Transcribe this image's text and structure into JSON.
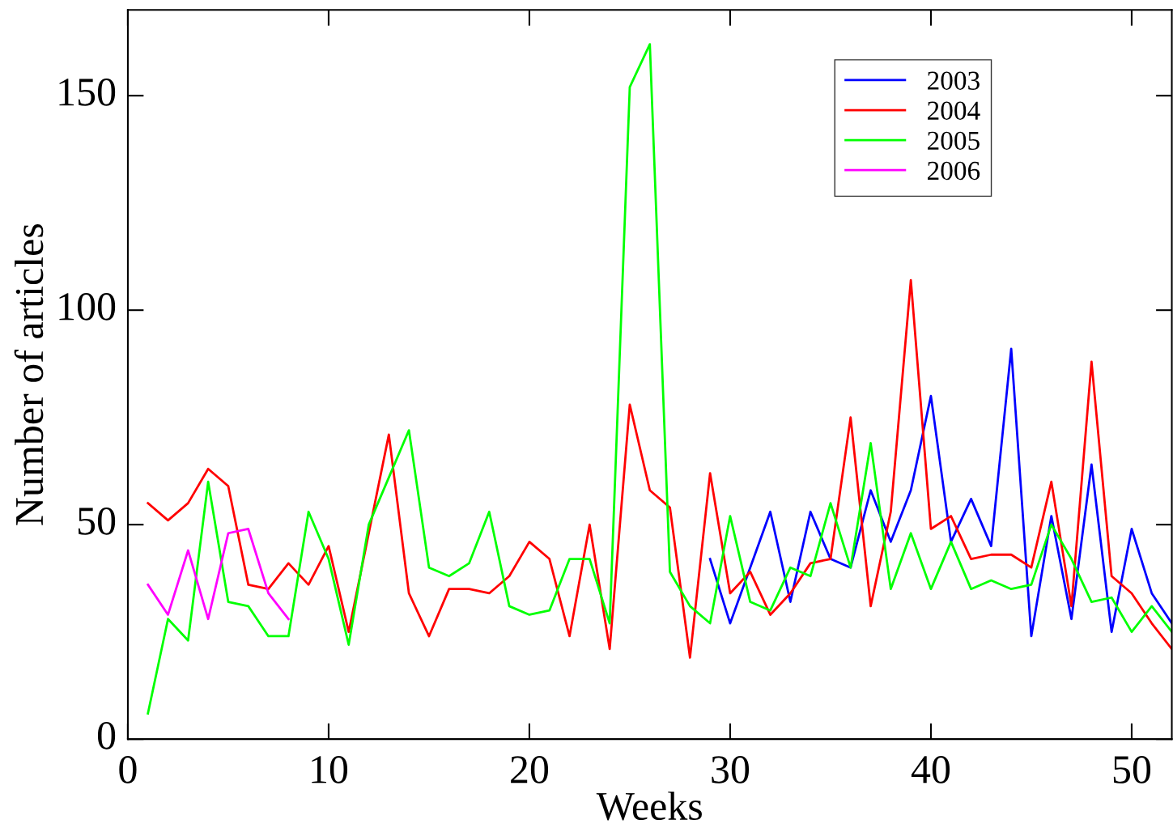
{
  "chart_data": {
    "type": "line",
    "xlabel": "Weeks",
    "ylabel": "Number of articles",
    "xlim": [
      0,
      52
    ],
    "ylim": [
      0,
      170
    ],
    "xticks": [
      0,
      10,
      20,
      30,
      40,
      50
    ],
    "yticks": [
      0,
      50,
      100,
      150
    ],
    "grid": false,
    "legend": "top right",
    "marker": "none",
    "line_style": "solid",
    "series": [
      {
        "name": "2003",
        "color": "#0000ff",
        "x": [
          29,
          30,
          31,
          32,
          33,
          34,
          35,
          36,
          37,
          38,
          39,
          40,
          41,
          42,
          43,
          44,
          45,
          46,
          47,
          48,
          49,
          50,
          51,
          52
        ],
        "values": [
          42,
          27,
          40,
          53,
          32,
          53,
          42,
          40,
          58,
          46,
          58,
          80,
          46,
          56,
          45,
          91,
          24,
          52,
          28,
          64,
          25,
          49,
          34,
          27
        ]
      },
      {
        "name": "2004",
        "color": "#ff0000",
        "x": [
          1,
          2,
          3,
          4,
          5,
          6,
          7,
          8,
          9,
          10,
          11,
          12,
          13,
          14,
          15,
          16,
          17,
          18,
          19,
          20,
          21,
          22,
          23,
          24,
          25,
          26,
          27,
          28,
          29,
          30,
          31,
          32,
          33,
          34,
          35,
          36,
          37,
          38,
          39,
          40,
          41,
          42,
          43,
          44,
          45,
          46,
          47,
          48,
          49,
          50,
          51,
          52
        ],
        "values": [
          55,
          51,
          55,
          63,
          59,
          36,
          35,
          41,
          36,
          45,
          25,
          48,
          71,
          34,
          24,
          35,
          35,
          34,
          38,
          46,
          42,
          24,
          50,
          21,
          78,
          58,
          54,
          19,
          62,
          34,
          39,
          29,
          34,
          41,
          42,
          75,
          31,
          53,
          107,
          49,
          52,
          42,
          43,
          43,
          40,
          60,
          31,
          88,
          38,
          34,
          27,
          21
        ]
      },
      {
        "name": "2005",
        "color": "#00ff00",
        "x": [
          1,
          2,
          3,
          4,
          5,
          6,
          7,
          8,
          9,
          10,
          11,
          12,
          13,
          14,
          15,
          16,
          17,
          18,
          19,
          20,
          21,
          22,
          23,
          24,
          25,
          26,
          27,
          28,
          29,
          30,
          31,
          32,
          33,
          34,
          35,
          36,
          37,
          38,
          39,
          40,
          41,
          42,
          43,
          44,
          45,
          46,
          47,
          48,
          49,
          50,
          51,
          52
        ],
        "values": [
          6,
          28,
          23,
          60,
          32,
          31,
          24,
          24,
          53,
          42,
          22,
          50,
          61,
          72,
          40,
          38,
          41,
          53,
          31,
          29,
          30,
          42,
          42,
          27,
          152,
          162,
          39,
          31,
          27,
          52,
          32,
          30,
          40,
          38,
          55,
          40,
          69,
          35,
          48,
          35,
          46,
          35,
          37,
          35,
          36,
          50,
          42,
          32,
          33,
          25,
          31,
          25
        ]
      },
      {
        "name": "2006",
        "color": "#ff00ff",
        "x": [
          1,
          2,
          3,
          4,
          5,
          6,
          7,
          8
        ],
        "values": [
          36,
          29,
          44,
          28,
          48,
          49,
          34,
          28
        ]
      }
    ]
  }
}
